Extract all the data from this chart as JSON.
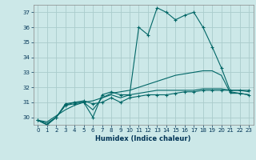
{
  "title": "",
  "xlabel": "Humidex (Indice chaleur)",
  "ylabel": "",
  "bg_color": "#cce8e8",
  "grid_color": "#aacccc",
  "line_color": "#006666",
  "xlim": [
    -0.5,
    23.5
  ],
  "ylim": [
    29.5,
    37.5
  ],
  "yticks": [
    30,
    31,
    32,
    33,
    34,
    35,
    36,
    37
  ],
  "xticks": [
    0,
    1,
    2,
    3,
    4,
    5,
    6,
    7,
    8,
    9,
    10,
    11,
    12,
    13,
    14,
    15,
    16,
    17,
    18,
    19,
    20,
    21,
    22,
    23
  ],
  "series": [
    [
      29.8,
      29.5,
      30.0,
      30.8,
      30.9,
      31.0,
      30.0,
      31.5,
      31.7,
      31.5,
      31.5,
      36.0,
      35.5,
      37.3,
      37.0,
      36.5,
      36.8,
      37.0,
      36.0,
      34.7,
      33.3,
      31.7,
      31.6,
      31.5
    ],
    [
      29.8,
      29.5,
      30.0,
      30.9,
      31.0,
      31.1,
      30.9,
      31.0,
      31.3,
      31.0,
      31.3,
      31.4,
      31.5,
      31.5,
      31.5,
      31.6,
      31.7,
      31.7,
      31.8,
      31.8,
      31.8,
      31.8,
      31.8,
      31.8
    ],
    [
      29.8,
      29.7,
      30.1,
      30.5,
      30.8,
      31.0,
      31.1,
      31.3,
      31.6,
      31.7,
      31.8,
      32.0,
      32.2,
      32.4,
      32.6,
      32.8,
      32.9,
      33.0,
      33.1,
      33.1,
      32.8,
      31.6,
      31.6,
      31.5
    ],
    [
      29.8,
      29.6,
      30.0,
      30.8,
      31.0,
      31.0,
      30.5,
      31.3,
      31.5,
      31.3,
      31.5,
      31.6,
      31.7,
      31.8,
      31.8,
      31.8,
      31.8,
      31.8,
      31.9,
      31.9,
      31.9,
      31.8,
      31.8,
      31.7
    ]
  ],
  "markers": [
    true,
    true,
    false,
    false
  ]
}
